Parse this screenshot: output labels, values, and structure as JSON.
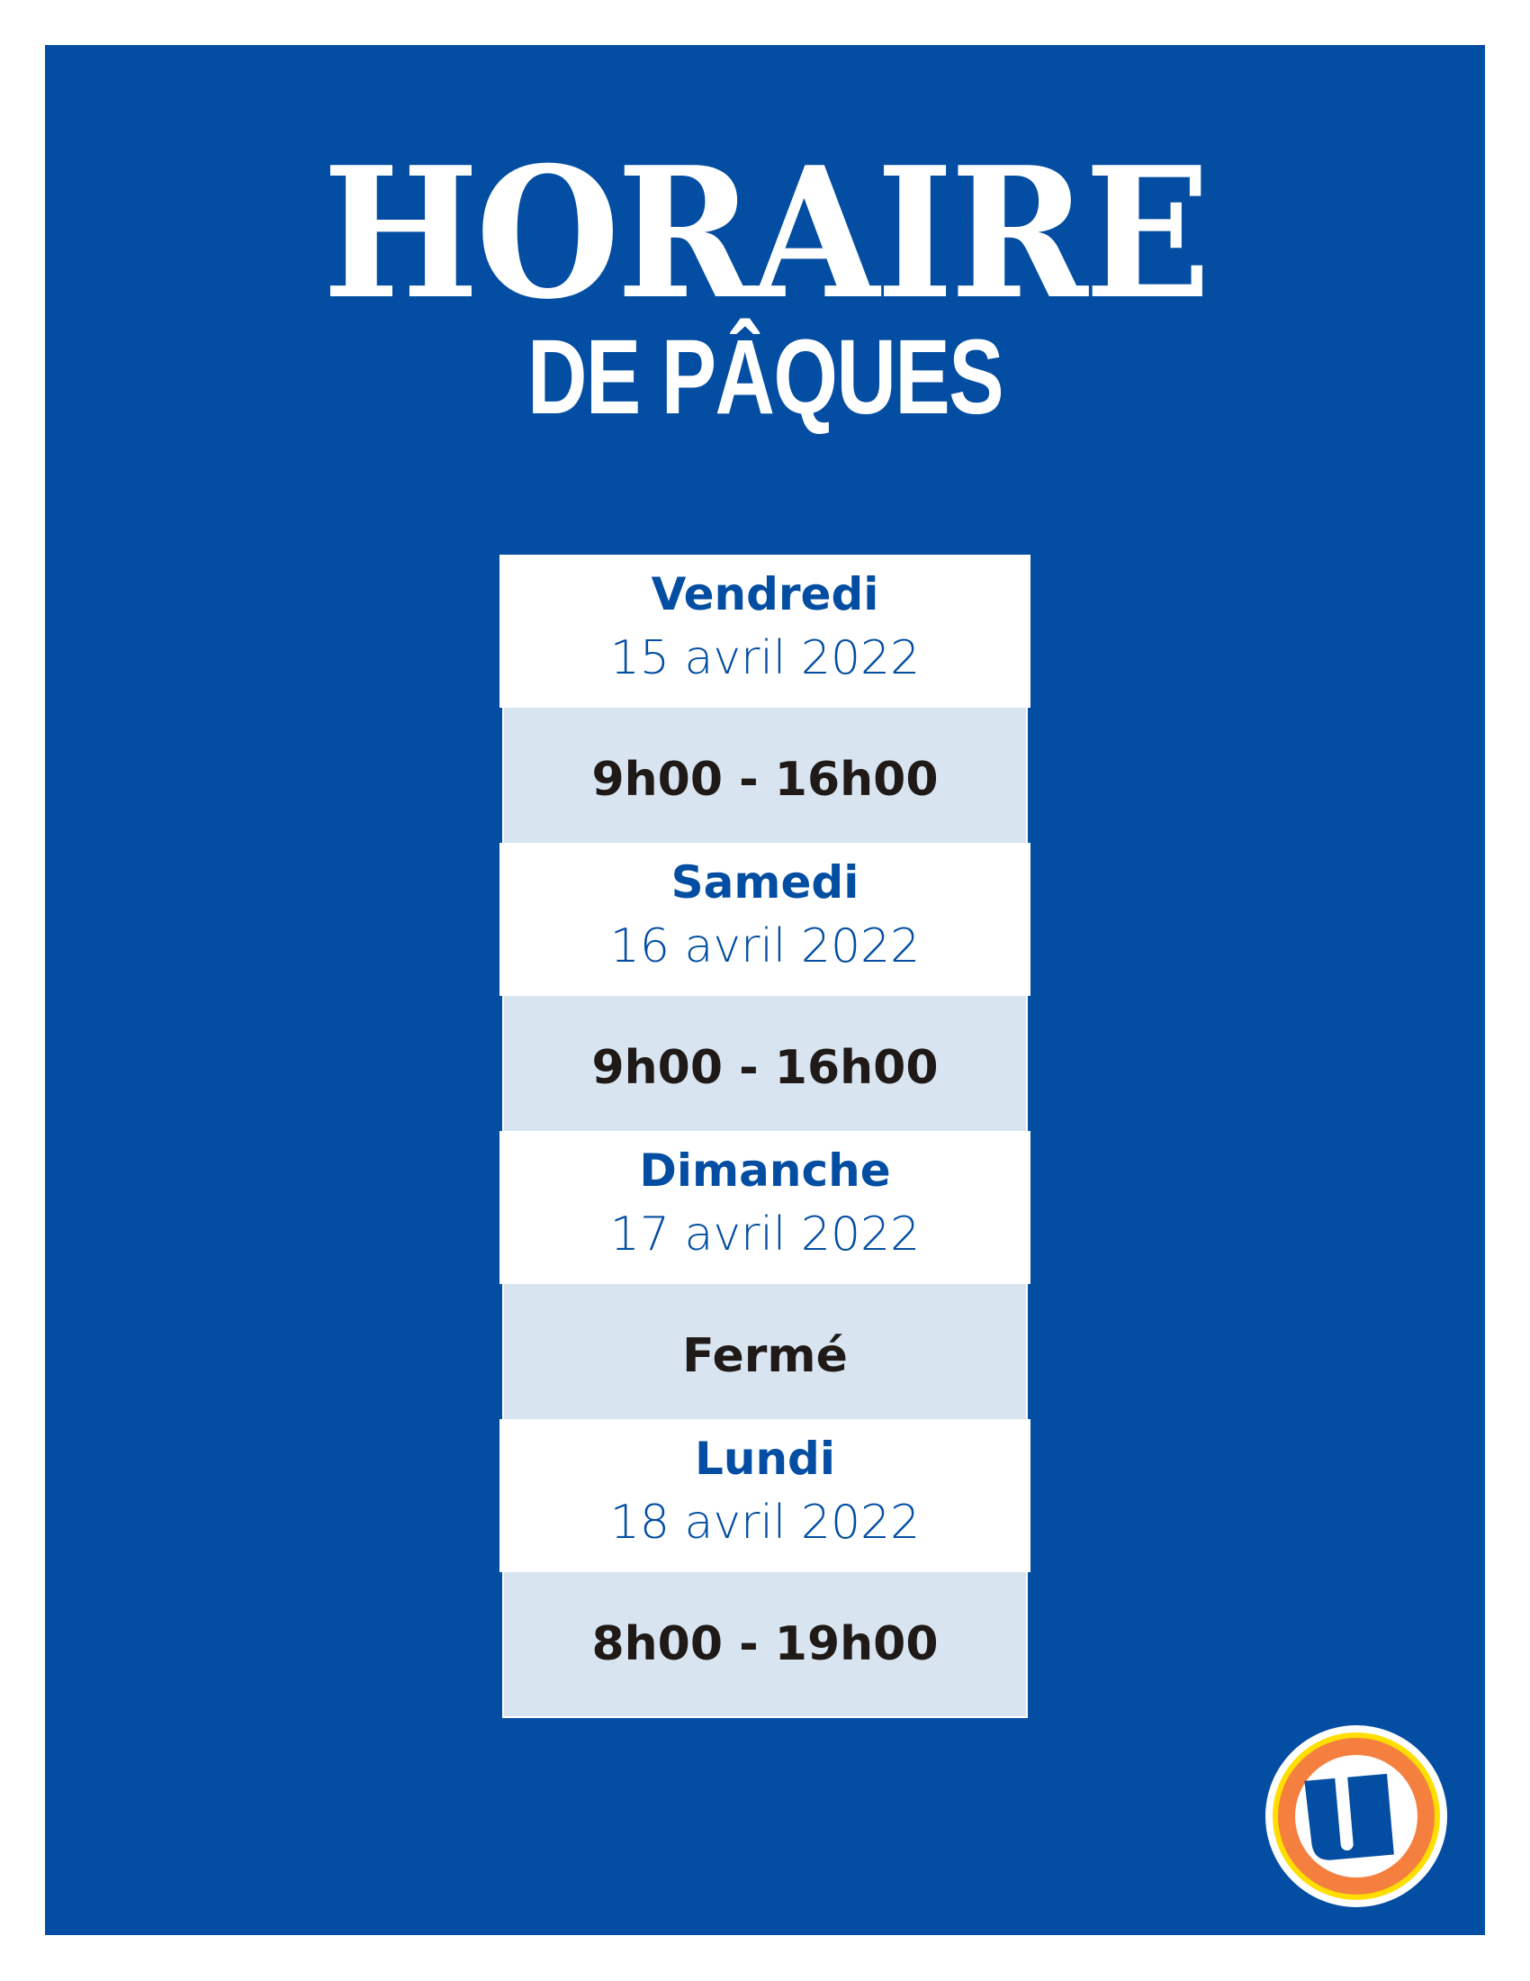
{
  "title": "HORAIRE",
  "subtitle": "DE PÂQUES",
  "colors": {
    "background": "#034ea2",
    "card_top": "#ffffff",
    "card_bottom": "#d8e4f0",
    "logo_orange": "#f47f3e",
    "logo_yellow": "#ffde00"
  },
  "schedule": [
    {
      "day": "Vendredi",
      "date": "15 avril 2022",
      "hours": "9h00 - 16h00"
    },
    {
      "day": "Samedi",
      "date": "16 avril 2022",
      "hours": "9h00 - 16h00"
    },
    {
      "day": "Dimanche",
      "date": "17 avril 2022",
      "hours": "Fermé"
    },
    {
      "day": "Lundi",
      "date": "18 avril 2022",
      "hours": "8h00 - 19h00"
    }
  ],
  "logo": {
    "icon": "u-logo"
  }
}
